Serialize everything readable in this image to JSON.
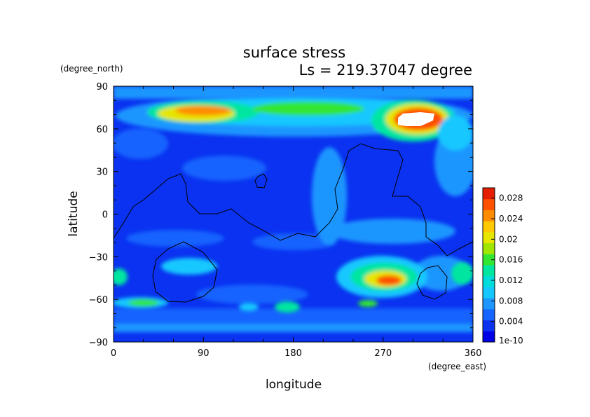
{
  "chart_data": {
    "type": "heatmap",
    "title": "surface stress",
    "subtitle": "Ls = 219.37047 degree",
    "xlabel": "longitude",
    "ylabel": "latitude",
    "x_unit": "(degree_east)",
    "y_unit": "(degree_north)",
    "xlim": [
      0,
      360
    ],
    "ylim": [
      -90,
      90
    ],
    "x_ticks": [
      "0",
      "90",
      "180",
      "270",
      "360"
    ],
    "y_ticks": [
      "90",
      "60",
      "30",
      "0",
      "−30",
      "−60",
      "−90"
    ],
    "colorbar": {
      "min_label": "1e-10",
      "tick_labels": [
        "0.004",
        "0.008",
        "0.012",
        "0.016",
        "0.02",
        "0.024",
        "0.028"
      ],
      "tick_values": [
        0.004,
        0.008,
        0.012,
        0.016,
        0.02,
        0.024,
        0.028
      ],
      "range": [
        0,
        0.03
      ],
      "colors": [
        "#0000e6",
        "#0a32f0",
        "#1464ff",
        "#1e96ff",
        "#14c8ff",
        "#00dcdc",
        "#00e6a0",
        "#32e632",
        "#a0e600",
        "#e6e600",
        "#ffc800",
        "#ff8c00",
        "#ff5000",
        "#e61e00"
      ],
      "above_color": "#ffffff"
    },
    "features": [
      {
        "name": "northern high-latitude stress band",
        "lon_range": [
          40,
          350
        ],
        "lat_range": [
          65,
          80
        ],
        "approx_value": 0.022
      },
      {
        "name": "northern maximum",
        "lon": 300,
        "lat": 65,
        "approx_value": 0.03
      },
      {
        "name": "southern mid-latitude maximum",
        "lon": 275,
        "lat": -45,
        "approx_value": 0.026
      },
      {
        "name": "southern patch near 60S",
        "lon": 40,
        "lat": -63,
        "approx_value": 0.016
      },
      {
        "name": "background",
        "approx_value": 0.002
      }
    ],
    "grid": false,
    "legend": "colorbar right"
  }
}
